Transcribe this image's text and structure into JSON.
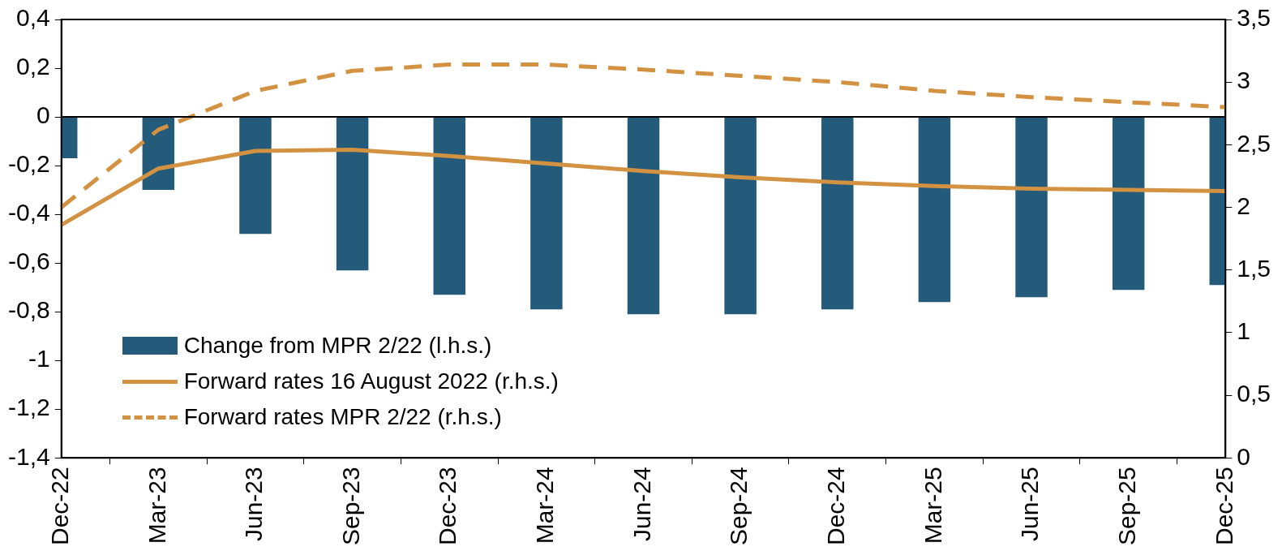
{
  "chart_data": {
    "type": "bar",
    "categories": [
      "Dec-22",
      "Mar-23",
      "Jun-23",
      "Sep-23",
      "Dec-23",
      "Mar-24",
      "Jun-24",
      "Sep-24",
      "Dec-24",
      "Mar-25",
      "Jun-25",
      "Sep-25",
      "Dec-25"
    ],
    "series": [
      {
        "name": "Change from MPR 2/22 (l.h.s.)",
        "color": "#245a7a",
        "values": [
          -0.17,
          -0.3,
          -0.48,
          -0.63,
          -0.73,
          -0.79,
          -0.81,
          -0.81,
          -0.79,
          -0.76,
          -0.74,
          -0.71,
          -0.69
        ]
      },
      {
        "name": "Forward rates 16 August 2022 (r.h.s.)",
        "type": "line",
        "axis": "y2",
        "line_style": "solid",
        "color": "#d39242",
        "values": [
          1.86,
          2.31,
          2.45,
          2.46,
          2.41,
          2.35,
          2.29,
          2.24,
          2.2,
          2.17,
          2.15,
          2.14,
          2.13
        ]
      },
      {
        "name": "Forward rates MPR 2/22 (r.h.s.)",
        "type": "line",
        "axis": "y2",
        "line_style": "dashed",
        "color": "#d39242",
        "values": [
          2.0,
          2.62,
          2.93,
          3.09,
          3.14,
          3.14,
          3.1,
          3.05,
          3.0,
          2.93,
          2.88,
          2.84,
          2.8
        ]
      }
    ],
    "ylim": [
      -1.4,
      0.4
    ],
    "yticks": [
      {
        "value": -1.4,
        "label": "-1,4"
      },
      {
        "value": -1.2,
        "label": "-1,2"
      },
      -1,
      {
        "value": -0.8,
        "label": "-0,8"
      },
      {
        "value": -0.6,
        "label": "-0,6"
      },
      {
        "value": -0.4,
        "label": "-0,4"
      },
      {
        "value": -0.2,
        "label": "-0,2"
      },
      0,
      {
        "value": 0.2,
        "label": "0,2"
      },
      {
        "value": 0.4,
        "label": "0,4"
      }
    ],
    "y2lim": [
      0,
      3.5
    ],
    "y2ticks": [
      0,
      {
        "value": 0.5,
        "label": "0,5"
      },
      1,
      {
        "value": 1.5,
        "label": "1,5"
      },
      2,
      {
        "value": 2.5,
        "label": "2,5"
      },
      3,
      {
        "value": 3.5,
        "label": "3,5"
      }
    ],
    "ref_lines": [
      {
        "axis": "y",
        "value": 0,
        "color": "#000000"
      }
    ],
    "grid": false,
    "legend": "bottom left",
    "marker": "none"
  }
}
